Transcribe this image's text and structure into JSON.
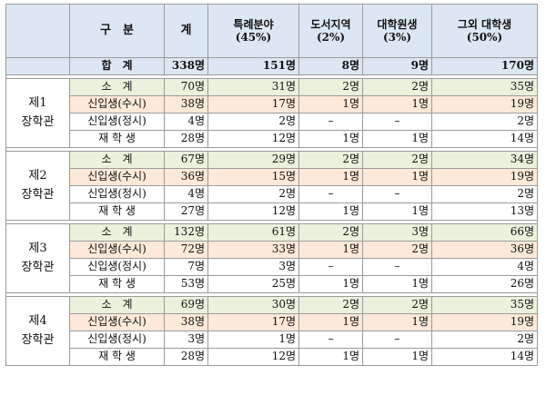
{
  "header": {
    "gubun": "구　분",
    "gye": "계",
    "cols": [
      {
        "line1": "특례분야",
        "line2": "(45%)"
      },
      {
        "line1": "도서지역",
        "line2": "(2%)"
      },
      {
        "line1": "대학원생",
        "line2": "(3%)"
      },
      {
        "line1": "그외 대학생",
        "line2": "(50%)"
      }
    ]
  },
  "total": {
    "label": "합　계",
    "values": [
      "338명",
      "151명",
      "8명",
      "9명",
      "170명"
    ]
  },
  "groups": [
    {
      "name_line1": "제1",
      "name_line2": "장학관",
      "rows": [
        {
          "label": "소　계",
          "values": [
            "70명",
            "31명",
            "2명",
            "2명",
            "35명"
          ]
        },
        {
          "label": "신입생(수시)",
          "values": [
            "38명",
            "17명",
            "1명",
            "1명",
            "19명"
          ]
        },
        {
          "label": "신입생(정시)",
          "values": [
            "4명",
            "2명",
            "–",
            "–",
            "2명"
          ]
        },
        {
          "label": "재 학 생",
          "values": [
            "28명",
            "12명",
            "1명",
            "1명",
            "14명"
          ]
        }
      ]
    },
    {
      "name_line1": "제2",
      "name_line2": "장학관",
      "rows": [
        {
          "label": "소　계",
          "values": [
            "67명",
            "29명",
            "2명",
            "2명",
            "34명"
          ]
        },
        {
          "label": "신입생(수시)",
          "values": [
            "36명",
            "15명",
            "1명",
            "1명",
            "19명"
          ]
        },
        {
          "label": "신입생(정시)",
          "values": [
            "4명",
            "2명",
            "–",
            "–",
            "2명"
          ]
        },
        {
          "label": "재 학 생",
          "values": [
            "27명",
            "12명",
            "1명",
            "1명",
            "13명"
          ]
        }
      ]
    },
    {
      "name_line1": "제3",
      "name_line2": "장학관",
      "rows": [
        {
          "label": "소　계",
          "values": [
            "132명",
            "61명",
            "2명",
            "3명",
            "66명"
          ]
        },
        {
          "label": "신입생(수시)",
          "values": [
            "72명",
            "33명",
            "1명",
            "2명",
            "36명"
          ]
        },
        {
          "label": "신입생(정시)",
          "values": [
            "7명",
            "3명",
            "–",
            "–",
            "4명"
          ]
        },
        {
          "label": "재 학 생",
          "values": [
            "53명",
            "25명",
            "1명",
            "1명",
            "26명"
          ]
        }
      ]
    },
    {
      "name_line1": "제4",
      "name_line2": "장학관",
      "rows": [
        {
          "label": "소　계",
          "values": [
            "69명",
            "30명",
            "2명",
            "2명",
            "35명"
          ]
        },
        {
          "label": "신입생(수시)",
          "values": [
            "38명",
            "17명",
            "1명",
            "1명",
            "19명"
          ]
        },
        {
          "label": "신입생(정시)",
          "values": [
            "3명",
            "1명",
            "–",
            "–",
            "2명"
          ]
        },
        {
          "label": "재 학 생",
          "values": [
            "28명",
            "12명",
            "1명",
            "1명",
            "14명"
          ]
        }
      ]
    }
  ],
  "colors": {
    "header_bg": "#dde7f3",
    "subtotal_bg": "#eaf1dd",
    "susi_bg": "#fde9d9",
    "border": "#9a9a9a"
  }
}
